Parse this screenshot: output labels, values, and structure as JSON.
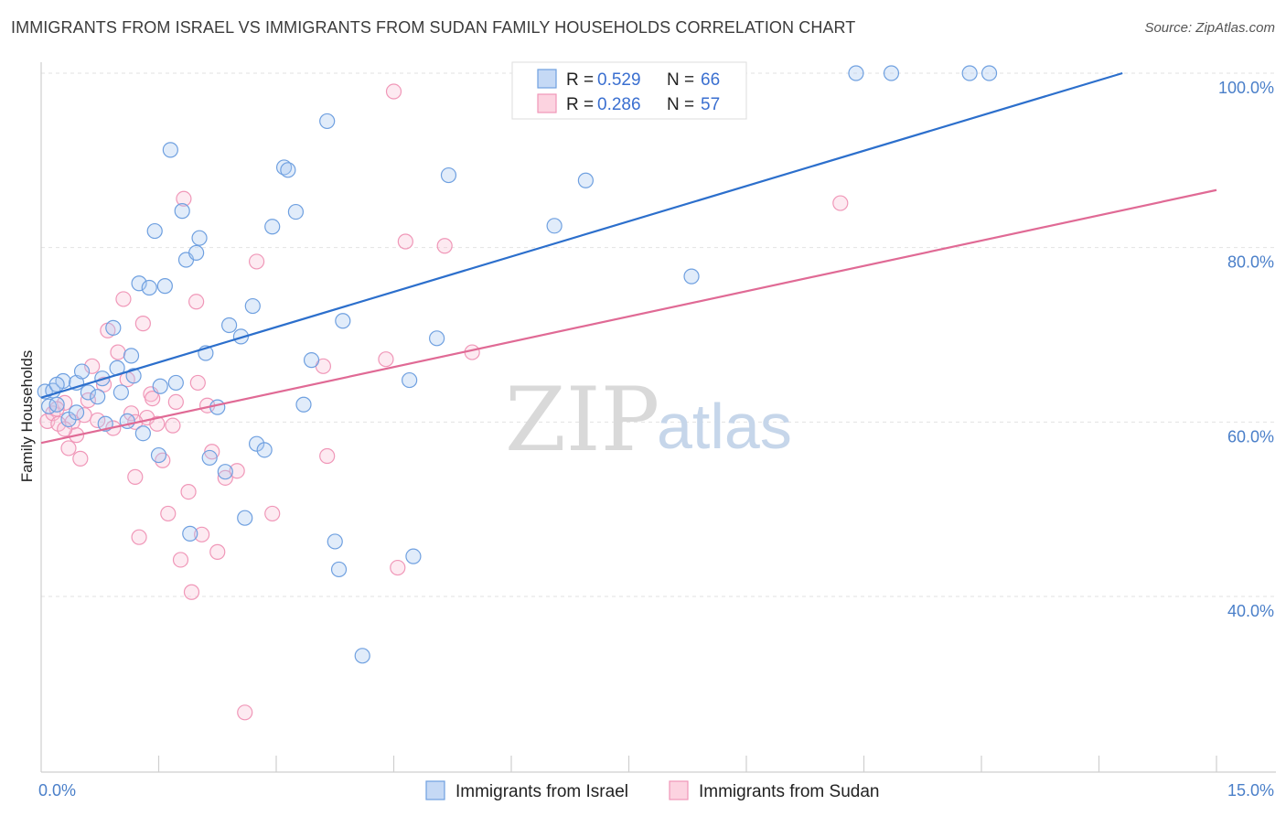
{
  "title": "IMMIGRANTS FROM ISRAEL VS IMMIGRANTS FROM SUDAN FAMILY HOUSEHOLDS CORRELATION CHART",
  "source": "Source: ZipAtlas.com",
  "watermark": {
    "zip": "ZIP",
    "atlas": "atlas"
  },
  "legend_top": [
    {
      "r_label": "R =",
      "r_value": "0.529",
      "n_label": "N =",
      "n_value": "66"
    },
    {
      "r_label": "R =",
      "r_value": "0.286",
      "n_label": "N =",
      "n_value": "57"
    }
  ],
  "chart_data": {
    "type": "scatter",
    "title": "IMMIGRANTS FROM ISRAEL VS IMMIGRANTS FROM SUDAN FAMILY HOUSEHOLDS CORRELATION CHART",
    "xlabel": "",
    "ylabel": "Family Households",
    "xlim": [
      0,
      15
    ],
    "ylim": [
      20,
      102
    ],
    "x_tick_labels": [
      "0.0%",
      "15.0%"
    ],
    "y_ticks": [
      40,
      60,
      80,
      100
    ],
    "y_tick_labels": [
      "40.0%",
      "60.0%",
      "80.0%",
      "100.0%"
    ],
    "colors": {
      "israel": "#6fa0e0",
      "sudan": "#f097b8",
      "israel_line": "#2c6fcc",
      "sudan_line": "#e06a95"
    },
    "series": [
      {
        "name": "Immigrants from Israel",
        "trend": [
          [
            0,
            62.8
          ],
          [
            13.8,
            100.0
          ]
        ],
        "points": [
          [
            0.05,
            63.5
          ],
          [
            0.1,
            61.8
          ],
          [
            0.15,
            63.6
          ],
          [
            0.2,
            62.0
          ],
          [
            0.28,
            64.7
          ],
          [
            0.35,
            60.3
          ],
          [
            0.45,
            61.1
          ],
          [
            0.45,
            64.5
          ],
          [
            0.52,
            65.8
          ],
          [
            0.6,
            63.4
          ],
          [
            0.72,
            62.9
          ],
          [
            0.78,
            65.0
          ],
          [
            0.82,
            59.8
          ],
          [
            0.92,
            70.8
          ],
          [
            0.97,
            66.2
          ],
          [
            1.02,
            63.4
          ],
          [
            1.1,
            60.1
          ],
          [
            1.15,
            67.6
          ],
          [
            1.18,
            65.3
          ],
          [
            1.25,
            75.9
          ],
          [
            1.3,
            58.7
          ],
          [
            1.38,
            75.4
          ],
          [
            1.45,
            81.9
          ],
          [
            1.52,
            64.1
          ],
          [
            1.58,
            75.6
          ],
          [
            1.65,
            91.2
          ],
          [
            1.72,
            64.5
          ],
          [
            1.8,
            84.2
          ],
          [
            1.85,
            78.6
          ],
          [
            1.9,
            47.2
          ],
          [
            1.98,
            79.4
          ],
          [
            2.02,
            81.1
          ],
          [
            2.1,
            67.9
          ],
          [
            2.15,
            55.9
          ],
          [
            2.25,
            61.7
          ],
          [
            2.35,
            54.3
          ],
          [
            2.4,
            71.1
          ],
          [
            2.55,
            69.8
          ],
          [
            2.6,
            49.0
          ],
          [
            2.7,
            73.3
          ],
          [
            2.75,
            57.5
          ],
          [
            2.85,
            56.8
          ],
          [
            2.95,
            82.4
          ],
          [
            3.1,
            89.2
          ],
          [
            3.15,
            88.9
          ],
          [
            3.25,
            84.1
          ],
          [
            3.35,
            62.0
          ],
          [
            3.45,
            67.1
          ],
          [
            3.65,
            94.5
          ],
          [
            3.75,
            46.3
          ],
          [
            3.8,
            43.1
          ],
          [
            3.85,
            71.6
          ],
          [
            4.1,
            33.2
          ],
          [
            4.7,
            64.8
          ],
          [
            4.75,
            44.6
          ],
          [
            5.05,
            69.6
          ],
          [
            5.2,
            88.3
          ],
          [
            6.55,
            82.5
          ],
          [
            6.95,
            87.7
          ],
          [
            8.3,
            76.7
          ],
          [
            10.4,
            100.0
          ],
          [
            10.85,
            100.0
          ],
          [
            11.85,
            100.0
          ],
          [
            12.1,
            100.0
          ],
          [
            1.5,
            56.2
          ],
          [
            0.2,
            64.3
          ]
        ]
      },
      {
        "name": "Immigrants from Sudan",
        "trend": [
          [
            0,
            57.6
          ],
          [
            15,
            86.6
          ]
        ],
        "points": [
          [
            0.08,
            60.1
          ],
          [
            0.15,
            61.0
          ],
          [
            0.22,
            59.8
          ],
          [
            0.3,
            62.2
          ],
          [
            0.35,
            57.0
          ],
          [
            0.4,
            60.0
          ],
          [
            0.45,
            58.5
          ],
          [
            0.55,
            60.8
          ],
          [
            0.65,
            66.4
          ],
          [
            0.72,
            60.2
          ],
          [
            0.8,
            64.3
          ],
          [
            0.85,
            70.5
          ],
          [
            0.92,
            59.3
          ],
          [
            0.98,
            68.0
          ],
          [
            1.05,
            74.1
          ],
          [
            1.1,
            64.9
          ],
          [
            1.15,
            61.0
          ],
          [
            1.2,
            53.7
          ],
          [
            1.25,
            46.8
          ],
          [
            1.3,
            71.3
          ],
          [
            1.35,
            60.5
          ],
          [
            1.4,
            63.2
          ],
          [
            1.42,
            62.7
          ],
          [
            1.48,
            59.8
          ],
          [
            1.55,
            55.6
          ],
          [
            1.62,
            49.5
          ],
          [
            1.68,
            59.6
          ],
          [
            1.72,
            62.3
          ],
          [
            1.78,
            44.2
          ],
          [
            1.82,
            85.6
          ],
          [
            1.88,
            52.0
          ],
          [
            1.92,
            40.5
          ],
          [
            1.98,
            73.8
          ],
          [
            2.05,
            47.1
          ],
          [
            2.12,
            61.9
          ],
          [
            2.18,
            56.6
          ],
          [
            2.25,
            45.1
          ],
          [
            2.35,
            53.6
          ],
          [
            2.5,
            54.4
          ],
          [
            2.6,
            26.7
          ],
          [
            2.75,
            78.4
          ],
          [
            2.95,
            49.5
          ],
          [
            3.6,
            66.4
          ],
          [
            3.65,
            56.1
          ],
          [
            4.4,
            67.2
          ],
          [
            4.5,
            97.9
          ],
          [
            4.55,
            43.3
          ],
          [
            4.65,
            80.7
          ],
          [
            5.15,
            80.2
          ],
          [
            5.5,
            68.0
          ],
          [
            10.2,
            85.1
          ],
          [
            0.2,
            61.5
          ],
          [
            0.5,
            55.8
          ],
          [
            1.2,
            60.0
          ],
          [
            0.6,
            62.5
          ],
          [
            2.0,
            64.5
          ],
          [
            0.3,
            59.2
          ]
        ]
      }
    ]
  },
  "legend_bottom": [
    "Immigrants from Israel",
    "Immigrants from Sudan"
  ]
}
